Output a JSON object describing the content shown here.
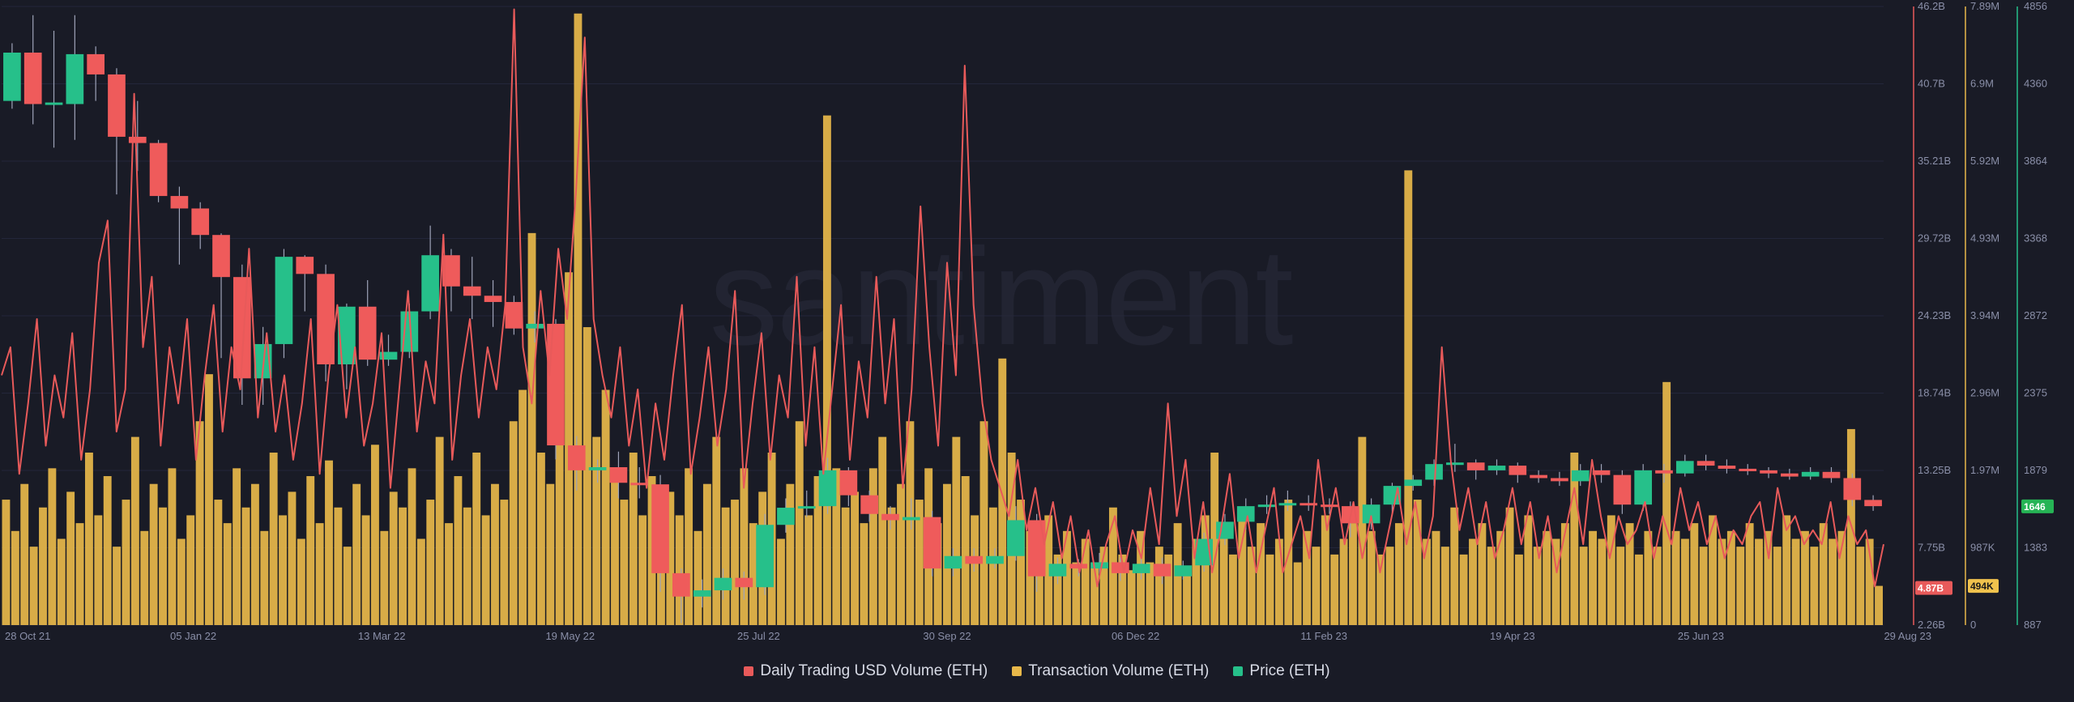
{
  "chart_data": {
    "type": "line",
    "watermark": "santiment",
    "x_labels": [
      "28 Oct 21",
      "05 Jan 22",
      "13 Mar 22",
      "19 May 22",
      "25 Jul 22",
      "30 Sep 22",
      "06 Dec 22",
      "11 Feb 23",
      "19 Apr 23",
      "25 Jun 23",
      "29 Aug 23"
    ],
    "series": [
      {
        "name": "Daily Trading USD Volume (ETH)",
        "kind": "line",
        "color": "#e85a5a",
        "axis_ticks": [
          "46.2B",
          "40.7B",
          "35.21B",
          "29.72B",
          "24.23B",
          "18.74B",
          "13.25B",
          "7.75B",
          "2.26B"
        ],
        "ylim": [
          2.26,
          46.2
        ],
        "unit": "B",
        "current_label": "4.87B",
        "values": [
          20,
          22,
          13,
          18,
          24,
          15,
          20,
          17,
          23,
          14,
          19,
          28,
          31,
          16,
          19,
          40,
          22,
          27,
          15,
          22,
          18,
          24,
          14,
          20,
          25,
          16,
          22,
          19,
          29,
          17,
          23,
          16,
          20,
          14,
          18,
          24,
          13,
          20,
          25,
          17,
          22,
          15,
          18,
          23,
          12,
          19,
          26,
          16,
          21,
          18,
          30,
          14,
          20,
          24,
          17,
          22,
          19,
          25,
          46,
          22,
          18,
          26,
          20,
          29,
          24,
          33,
          44,
          24,
          20,
          17,
          22,
          15,
          19,
          12,
          18,
          14,
          20,
          25,
          13,
          17,
          22,
          15,
          19,
          26,
          12,
          18,
          23,
          14,
          20,
          17,
          27,
          15,
          22,
          13,
          19,
          25,
          14,
          21,
          17,
          27,
          18,
          24,
          12,
          19,
          32,
          22,
          15,
          28,
          20,
          42,
          25,
          18,
          14,
          12,
          10,
          14,
          9,
          12,
          8,
          11,
          7,
          10,
          6,
          9,
          5,
          8,
          10,
          6,
          9,
          7,
          12,
          8,
          18,
          10,
          14,
          7,
          11,
          6,
          9,
          13,
          7,
          10,
          6,
          9,
          12,
          6,
          8,
          10,
          7,
          14,
          9,
          12,
          8,
          11,
          7,
          10,
          6,
          9,
          12,
          8,
          11,
          7,
          10,
          22,
          14,
          9,
          12,
          8,
          11,
          7,
          9,
          12,
          8,
          11,
          7,
          10,
          6,
          9,
          12,
          8,
          14,
          10,
          7,
          10,
          8,
          9,
          11,
          7,
          10,
          8,
          12,
          9,
          11,
          8,
          10,
          7,
          9,
          8,
          10,
          11,
          7,
          12,
          9,
          10,
          8,
          9,
          8,
          11,
          7,
          10,
          8,
          9,
          5,
          8
        ]
      },
      {
        "name": "Transaction Volume (ETH)",
        "kind": "bar",
        "color": "#e8b84a",
        "axis_ticks": [
          "7.89M",
          "6.9M",
          "5.92M",
          "4.93M",
          "3.94M",
          "2.96M",
          "1.97M",
          "987K",
          "0"
        ],
        "ylim": [
          0,
          7.89
        ],
        "unit": "M",
        "current_label": "494K",
        "values": [
          1.6,
          1.2,
          1.8,
          1.0,
          1.5,
          2.0,
          1.1,
          1.7,
          1.3,
          2.2,
          1.4,
          1.9,
          1.0,
          1.6,
          2.4,
          1.2,
          1.8,
          1.5,
          2.0,
          1.1,
          1.4,
          2.6,
          3.2,
          1.6,
          1.3,
          2.0,
          1.5,
          1.8,
          1.2,
          2.2,
          1.4,
          1.7,
          1.1,
          1.9,
          1.3,
          2.1,
          1.5,
          1.0,
          1.8,
          1.4,
          2.3,
          1.2,
          1.7,
          1.5,
          2.0,
          1.1,
          1.6,
          2.4,
          1.3,
          1.9,
          1.5,
          2.2,
          1.4,
          1.8,
          1.6,
          2.6,
          3.0,
          5.0,
          2.2,
          1.8,
          3.2,
          4.5,
          7.8,
          3.8,
          2.4,
          3.0,
          2.0,
          1.6,
          2.2,
          1.4,
          1.9,
          1.2,
          1.7,
          1.4,
          2.0,
          1.2,
          1.8,
          2.4,
          1.5,
          1.6,
          2.0,
          1.3,
          1.7,
          2.2,
          1.1,
          1.8,
          2.6,
          1.4,
          1.9,
          6.5,
          2.0,
          1.5,
          1.7,
          1.3,
          2.0,
          2.4,
          1.5,
          1.8,
          2.6,
          1.6,
          2.0,
          1.3,
          1.8,
          2.4,
          1.9,
          1.4,
          2.6,
          1.5,
          3.4,
          2.2,
          1.6,
          1.2,
          1.0,
          1.4,
          0.9,
          1.2,
          0.8,
          1.1,
          0.8,
          1.0,
          1.5,
          0.9,
          0.7,
          1.2,
          0.8,
          1.0,
          0.9,
          1.3,
          0.7,
          1.1,
          1.4,
          2.2,
          1.2,
          0.9,
          1.5,
          1.0,
          1.3,
          0.9,
          1.1,
          1.6,
          0.8,
          1.2,
          1.0,
          1.4,
          0.9,
          1.1,
          1.3,
          2.4,
          1.2,
          0.9,
          1.0,
          1.3,
          5.8,
          1.6,
          1.1,
          1.2,
          1.0,
          1.5,
          0.9,
          1.1,
          1.3,
          1.0,
          1.2,
          1.5,
          0.9,
          1.4,
          1.0,
          1.2,
          1.1,
          1.3,
          2.2,
          1.0,
          1.2,
          1.1,
          1.4,
          1.0,
          1.3,
          0.9,
          1.2,
          1.0,
          3.1,
          1.2,
          1.1,
          1.3,
          1.0,
          1.4,
          1.1,
          1.2,
          1.0,
          1.3,
          1.1,
          1.2,
          1.0,
          1.4,
          1.1,
          1.2,
          1.0,
          1.3,
          1.1,
          1.2,
          2.5,
          1.0,
          1.1,
          0.5
        ]
      },
      {
        "name": "Price (ETH)",
        "kind": "candlestick",
        "color_up": "#26c08a",
        "color_down": "#ef5b5b",
        "axis_ticks": [
          "4856",
          "4360",
          "3864",
          "3368",
          "2872",
          "2375",
          "1879",
          "1383",
          "887"
        ],
        "ylim": [
          887,
          4856
        ],
        "current_label": "1646",
        "candles": [
          {
            "o": 4250,
            "c": 4560,
            "h": 4620,
            "l": 4200
          },
          {
            "o": 4560,
            "c": 4230,
            "h": 4800,
            "l": 4100
          },
          {
            "o": 4230,
            "c": 4240,
            "h": 4700,
            "l": 3950
          },
          {
            "o": 4230,
            "c": 4550,
            "h": 4800,
            "l": 4000
          },
          {
            "o": 4550,
            "c": 4420,
            "h": 4600,
            "l": 4250
          },
          {
            "o": 4420,
            "c": 4020,
            "h": 4460,
            "l": 3650
          },
          {
            "o": 4020,
            "c": 3980,
            "h": 4250,
            "l": 3800
          },
          {
            "o": 3980,
            "c": 3640,
            "h": 4000,
            "l": 3600
          },
          {
            "o": 3640,
            "c": 3560,
            "h": 3700,
            "l": 3200
          },
          {
            "o": 3560,
            "c": 3390,
            "h": 3600,
            "l": 3300
          },
          {
            "o": 3390,
            "c": 3120,
            "h": 3400,
            "l": 2600
          },
          {
            "o": 3120,
            "c": 2470,
            "h": 3200,
            "l": 2300
          },
          {
            "o": 2470,
            "c": 2690,
            "h": 2800,
            "l": 2300
          },
          {
            "o": 2690,
            "c": 3250,
            "h": 3300,
            "l": 2600
          },
          {
            "o": 3250,
            "c": 3140,
            "h": 3260,
            "l": 2900
          },
          {
            "o": 3140,
            "c": 2560,
            "h": 3200,
            "l": 2450
          },
          {
            "o": 2560,
            "c": 2930,
            "h": 2950,
            "l": 2400
          },
          {
            "o": 2930,
            "c": 2590,
            "h": 3100,
            "l": 2550
          },
          {
            "o": 2590,
            "c": 2640,
            "h": 2750,
            "l": 2550
          },
          {
            "o": 2640,
            "c": 2900,
            "h": 2950,
            "l": 2600
          },
          {
            "o": 2900,
            "c": 3260,
            "h": 3450,
            "l": 2850
          },
          {
            "o": 3260,
            "c": 3060,
            "h": 3300,
            "l": 2900
          },
          {
            "o": 3060,
            "c": 3000,
            "h": 3250,
            "l": 2850
          },
          {
            "o": 3000,
            "c": 2960,
            "h": 3100,
            "l": 2800
          },
          {
            "o": 2960,
            "c": 2790,
            "h": 3000,
            "l": 2750
          },
          {
            "o": 2790,
            "c": 2820,
            "h": 2900,
            "l": 2700
          },
          {
            "o": 2820,
            "c": 2040,
            "h": 2850,
            "l": 1950
          },
          {
            "o": 2040,
            "c": 1880,
            "h": 2100,
            "l": 1750
          },
          {
            "o": 1880,
            "c": 1900,
            "h": 1950,
            "l": 1800
          },
          {
            "o": 1900,
            "c": 1800,
            "h": 2000,
            "l": 1700
          },
          {
            "o": 1800,
            "c": 1790,
            "h": 1900,
            "l": 1700
          },
          {
            "o": 1790,
            "c": 1220,
            "h": 1850,
            "l": 1100
          },
          {
            "o": 1220,
            "c": 1070,
            "h": 1250,
            "l": 900
          },
          {
            "o": 1070,
            "c": 1110,
            "h": 1180,
            "l": 1000
          },
          {
            "o": 1110,
            "c": 1190,
            "h": 1250,
            "l": 1050
          },
          {
            "o": 1190,
            "c": 1130,
            "h": 1230,
            "l": 1050
          },
          {
            "o": 1130,
            "c": 1530,
            "h": 1600,
            "l": 1080
          },
          {
            "o": 1530,
            "c": 1640,
            "h": 1700,
            "l": 1480
          },
          {
            "o": 1640,
            "c": 1650,
            "h": 1750,
            "l": 1580
          },
          {
            "o": 1650,
            "c": 1880,
            "h": 1960,
            "l": 1600
          },
          {
            "o": 1880,
            "c": 1720,
            "h": 1900,
            "l": 1650
          },
          {
            "o": 1720,
            "c": 1600,
            "h": 1750,
            "l": 1550
          },
          {
            "o": 1600,
            "c": 1560,
            "h": 1650,
            "l": 1500
          },
          {
            "o": 1560,
            "c": 1580,
            "h": 1700,
            "l": 1500
          },
          {
            "o": 1580,
            "c": 1250,
            "h": 1620,
            "l": 1200
          },
          {
            "o": 1250,
            "c": 1330,
            "h": 1380,
            "l": 1200
          },
          {
            "o": 1330,
            "c": 1280,
            "h": 1380,
            "l": 1230
          },
          {
            "o": 1280,
            "c": 1330,
            "h": 1380,
            "l": 1250
          },
          {
            "o": 1330,
            "c": 1560,
            "h": 1650,
            "l": 1300
          },
          {
            "o": 1560,
            "c": 1200,
            "h": 1600,
            "l": 1100
          },
          {
            "o": 1200,
            "c": 1280,
            "h": 1320,
            "l": 1150
          },
          {
            "o": 1280,
            "c": 1250,
            "h": 1310,
            "l": 1200
          },
          {
            "o": 1250,
            "c": 1290,
            "h": 1350,
            "l": 1200
          },
          {
            "o": 1290,
            "c": 1220,
            "h": 1320,
            "l": 1170
          },
          {
            "o": 1220,
            "c": 1280,
            "h": 1330,
            "l": 1180
          },
          {
            "o": 1280,
            "c": 1200,
            "h": 1320,
            "l": 1150
          },
          {
            "o": 1200,
            "c": 1270,
            "h": 1300,
            "l": 1180
          },
          {
            "o": 1270,
            "c": 1440,
            "h": 1480,
            "l": 1230
          },
          {
            "o": 1440,
            "c": 1550,
            "h": 1600,
            "l": 1400
          },
          {
            "o": 1550,
            "c": 1650,
            "h": 1700,
            "l": 1500
          },
          {
            "o": 1650,
            "c": 1660,
            "h": 1720,
            "l": 1600
          },
          {
            "o": 1660,
            "c": 1670,
            "h": 1750,
            "l": 1620
          },
          {
            "o": 1670,
            "c": 1660,
            "h": 1720,
            "l": 1620
          },
          {
            "o": 1660,
            "c": 1650,
            "h": 1700,
            "l": 1600
          },
          {
            "o": 1650,
            "c": 1540,
            "h": 1680,
            "l": 1450
          },
          {
            "o": 1540,
            "c": 1660,
            "h": 1700,
            "l": 1500
          },
          {
            "o": 1660,
            "c": 1780,
            "h": 1800,
            "l": 1600
          },
          {
            "o": 1780,
            "c": 1820,
            "h": 1850,
            "l": 1750
          },
          {
            "o": 1820,
            "c": 1920,
            "h": 1950,
            "l": 1780
          },
          {
            "o": 1920,
            "c": 1930,
            "h": 2050,
            "l": 1870
          },
          {
            "o": 1930,
            "c": 1880,
            "h": 1950,
            "l": 1820
          },
          {
            "o": 1880,
            "c": 1910,
            "h": 1950,
            "l": 1850
          },
          {
            "o": 1910,
            "c": 1850,
            "h": 1930,
            "l": 1800
          },
          {
            "o": 1850,
            "c": 1830,
            "h": 1880,
            "l": 1800
          },
          {
            "o": 1830,
            "c": 1810,
            "h": 1870,
            "l": 1780
          },
          {
            "o": 1810,
            "c": 1880,
            "h": 1920,
            "l": 1780
          },
          {
            "o": 1880,
            "c": 1850,
            "h": 1920,
            "l": 1800
          },
          {
            "o": 1850,
            "c": 1660,
            "h": 1880,
            "l": 1600
          },
          {
            "o": 1660,
            "c": 1880,
            "h": 1920,
            "l": 1620
          },
          {
            "o": 1880,
            "c": 1860,
            "h": 1920,
            "l": 1800
          },
          {
            "o": 1860,
            "c": 1940,
            "h": 1980,
            "l": 1840
          },
          {
            "o": 1940,
            "c": 1910,
            "h": 1980,
            "l": 1880
          },
          {
            "o": 1910,
            "c": 1890,
            "h": 1950,
            "l": 1860
          },
          {
            "o": 1890,
            "c": 1880,
            "h": 1920,
            "l": 1850
          },
          {
            "o": 1880,
            "c": 1860,
            "h": 1900,
            "l": 1830
          },
          {
            "o": 1860,
            "c": 1840,
            "h": 1890,
            "l": 1820
          },
          {
            "o": 1840,
            "c": 1870,
            "h": 1900,
            "l": 1820
          },
          {
            "o": 1870,
            "c": 1830,
            "h": 1900,
            "l": 1800
          },
          {
            "o": 1830,
            "c": 1690,
            "h": 1860,
            "l": 1650
          },
          {
            "o": 1690,
            "c": 1650,
            "h": 1720,
            "l": 1620
          }
        ]
      }
    ]
  },
  "legend": [
    {
      "label": "Daily Trading USD Volume (ETH)",
      "color": "#e85a5a"
    },
    {
      "label": "Transaction Volume (ETH)",
      "color": "#e8b84a"
    },
    {
      "label": "Price (ETH)",
      "color": "#26c08a"
    }
  ]
}
